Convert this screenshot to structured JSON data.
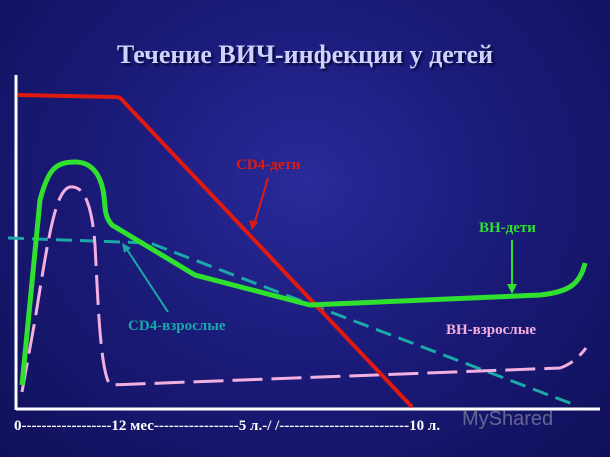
{
  "title": "Течение ВИЧ-инфекции у детей",
  "x_axis_text": "0------------------12 мес-----------------5 л.-/ /--------------------------10 л.",
  "labels": {
    "cd4_children": "CD4-дети",
    "vl_children": "ВН-дети",
    "cd4_adults": "CD4-взрослые",
    "vl_adults": "ВН-взрослые"
  },
  "colors": {
    "cd4_children": "#e01a10",
    "vl_children": "#2fe02f",
    "cd4_adults": "#1aa8a8",
    "vl_adults": "#f2b0e0",
    "axis": "#ffffff"
  },
  "watermark": "MyShared"
}
